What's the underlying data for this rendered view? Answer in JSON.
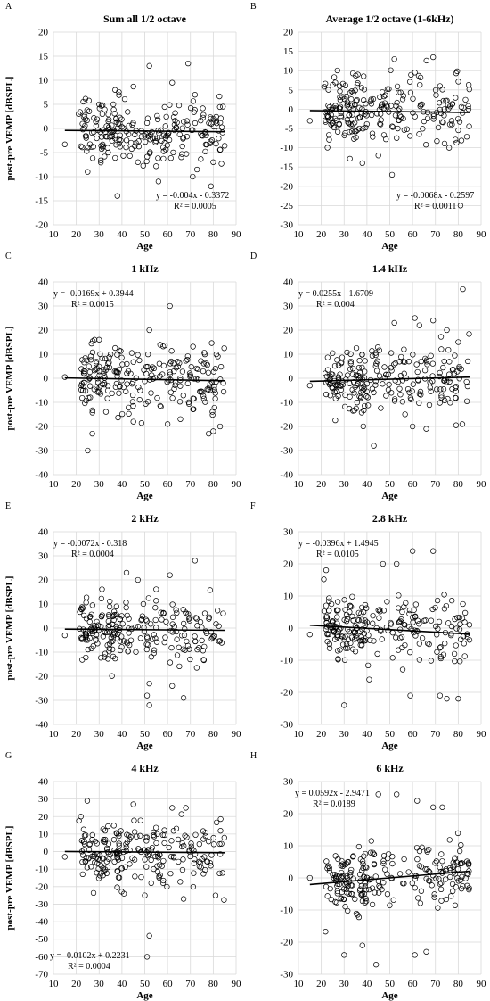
{
  "chart_data": [
    {
      "type": "scatter",
      "letter": "A",
      "title": "Sum all 1/2 octave",
      "xlabel": "Age",
      "ylabel": "post-pre VEMP [dBSPL]",
      "xlim": [
        10,
        90
      ],
      "ylim": [
        -20,
        20
      ],
      "xticks": [
        "10",
        "20",
        "30",
        "40",
        "50",
        "60",
        "70",
        "80",
        "90"
      ],
      "yticks": [
        "20",
        "15",
        "10",
        "5",
        "0",
        "-5",
        "-10",
        "-15",
        "-20"
      ],
      "equation": "y = -0.004x - 0.3372",
      "r2": "R² = 0.0005",
      "trendline": {
        "slope": -0.004,
        "intercept": -0.3372,
        "x_range": [
          15,
          85
        ]
      },
      "marker": "open-circle",
      "grid": true,
      "scatter_seed": 11,
      "points": [
        [
          15,
          -3.3
        ],
        [
          38,
          -14
        ],
        [
          52,
          13
        ],
        [
          69,
          13.5
        ],
        [
          45,
          8.7
        ],
        [
          37,
          8
        ],
        [
          62,
          9.5
        ],
        [
          72,
          7
        ],
        [
          21,
          3
        ],
        [
          30,
          5
        ],
        [
          56,
          -11
        ],
        [
          79,
          -12
        ],
        [
          71,
          -10
        ],
        [
          47,
          -7
        ],
        [
          80,
          -7
        ]
      ]
    },
    {
      "type": "scatter",
      "letter": "B",
      "title": "Average 1/2 octave (1-6kHz)",
      "xlabel": "Age",
      "ylabel": "",
      "xlim": [
        10,
        90
      ],
      "ylim": [
        -30,
        20
      ],
      "xticks": [
        "10",
        "20",
        "30",
        "40",
        "50",
        "60",
        "70",
        "80",
        "90"
      ],
      "yticks": [
        "20",
        "15",
        "10",
        "5",
        "0",
        "-5",
        "-10",
        "-15",
        "-20",
        "-25",
        "-30"
      ],
      "equation": "y = -0.0068x - 0.2597",
      "r2": "R² = 0.0011",
      "trendline": {
        "slope": -0.0068,
        "intercept": -0.2597,
        "x_range": [
          15,
          85
        ]
      },
      "marker": "open-circle",
      "grid": true,
      "scatter_seed": 23,
      "points": [
        [
          15,
          -3
        ],
        [
          52,
          13
        ],
        [
          69,
          13.5
        ],
        [
          81,
          -25
        ],
        [
          51,
          -17
        ],
        [
          38,
          -14
        ],
        [
          45,
          -12
        ],
        [
          61,
          9.5
        ],
        [
          72,
          6
        ],
        [
          28,
          6
        ],
        [
          36,
          9
        ],
        [
          76,
          -10
        ]
      ]
    },
    {
      "type": "scatter",
      "letter": "C",
      "title": "1 kHz",
      "xlabel": "Age",
      "ylabel": "post-pre VEMP [dBSPL]",
      "xlim": [
        10,
        90
      ],
      "ylim": [
        -40,
        40
      ],
      "xticks": [
        "10",
        "20",
        "30",
        "40",
        "50",
        "60",
        "70",
        "80",
        "90"
      ],
      "yticks": [
        "40",
        "30",
        "20",
        "10",
        "0",
        "-10",
        "-20",
        "-30",
        "-40"
      ],
      "equation": "y = -0.0169x + 0.3944",
      "r2": "R² = 0.0015",
      "trendline": {
        "slope": -0.0169,
        "intercept": 0.3944,
        "x_range": [
          15,
          85
        ]
      },
      "marker": "open-circle",
      "grid": true,
      "scatter_seed": 37,
      "points": [
        [
          15,
          0.5
        ],
        [
          25,
          -30
        ],
        [
          27,
          -23
        ],
        [
          28,
          16
        ],
        [
          30,
          16
        ],
        [
          52,
          20
        ],
        [
          61,
          30
        ],
        [
          78,
          -23
        ],
        [
          80,
          -22
        ],
        [
          83,
          -20
        ],
        [
          60,
          -19
        ],
        [
          45,
          -18
        ]
      ]
    },
    {
      "type": "scatter",
      "letter": "D",
      "title": "1.4 kHz",
      "xlabel": "Age",
      "ylabel": "",
      "xlim": [
        10,
        90
      ],
      "ylim": [
        -40,
        40
      ],
      "xticks": [
        "10",
        "20",
        "30",
        "40",
        "50",
        "60",
        "70",
        "80",
        "90"
      ],
      "yticks": [
        "40",
        "30",
        "20",
        "10",
        "0",
        "-10",
        "-20",
        "-30",
        "-40"
      ],
      "equation": "y = 0.0255x - 1.6709",
      "r2": "R² = 0.004",
      "trendline": {
        "slope": 0.0255,
        "intercept": -1.6709,
        "x_range": [
          15,
          85
        ]
      },
      "marker": "open-circle",
      "grid": true,
      "scatter_seed": 41,
      "points": [
        [
          15,
          -3
        ],
        [
          82,
          37
        ],
        [
          43,
          -28
        ],
        [
          52,
          23
        ],
        [
          61,
          25
        ],
        [
          63,
          22
        ],
        [
          69,
          24
        ],
        [
          75,
          20
        ],
        [
          80,
          15
        ],
        [
          60,
          -20
        ],
        [
          66,
          -21
        ]
      ]
    },
    {
      "type": "scatter",
      "letter": "E",
      "title": "2 kHz",
      "xlabel": "Age",
      "ylabel": "post-pre VEMP [dBSPL]",
      "xlim": [
        10,
        90
      ],
      "ylim": [
        -40,
        40
      ],
      "xticks": [
        "10",
        "20",
        "30",
        "40",
        "50",
        "60",
        "70",
        "80",
        "90"
      ],
      "yticks": [
        "40",
        "30",
        "20",
        "10",
        "0",
        "-10",
        "-20",
        "-30",
        "-40"
      ],
      "equation": "y = -0.0072x - 0.318",
      "r2": "R² = 0.0004",
      "trendline": {
        "slope": -0.0072,
        "intercept": -0.318,
        "x_range": [
          15,
          85
        ]
      },
      "marker": "open-circle",
      "grid": true,
      "scatter_seed": 53,
      "points": [
        [
          15,
          -3
        ],
        [
          42,
          23
        ],
        [
          47,
          20
        ],
        [
          61,
          22
        ],
        [
          72,
          28
        ],
        [
          52,
          -32
        ],
        [
          51,
          -28
        ],
        [
          67,
          -29
        ],
        [
          62,
          -24
        ],
        [
          52,
          -23
        ]
      ]
    },
    {
      "type": "scatter",
      "letter": "F",
      "title": "2.8 kHz",
      "xlabel": "Age",
      "ylabel": "",
      "xlim": [
        10,
        90
      ],
      "ylim": [
        -30,
        30
      ],
      "xticks": [
        "10",
        "20",
        "30",
        "40",
        "50",
        "60",
        "70",
        "80",
        "90"
      ],
      "yticks": [
        "30",
        "20",
        "10",
        "0",
        "-10",
        "-20",
        "-30"
      ],
      "equation": "y = -0.0396x + 1.4945",
      "r2": "R² = 0.0105",
      "trendline": {
        "slope": -0.0396,
        "intercept": 1.4945,
        "x_range": [
          15,
          85
        ]
      },
      "marker": "open-circle",
      "grid": true,
      "scatter_seed": 67,
      "points": [
        [
          15,
          -2
        ],
        [
          30,
          -24
        ],
        [
          60,
          24
        ],
        [
          69,
          24
        ],
        [
          47,
          20
        ],
        [
          53,
          20
        ],
        [
          59,
          -21
        ],
        [
          72,
          -21
        ],
        [
          75,
          -22
        ],
        [
          80,
          -22
        ],
        [
          41,
          -16
        ]
      ]
    },
    {
      "type": "scatter",
      "letter": "G",
      "title": "4 kHz",
      "xlabel": "Age",
      "ylabel": "post-pre VEMP [dBSPL]",
      "xlim": [
        10,
        90
      ],
      "ylim": [
        -70,
        40
      ],
      "xticks": [
        "10",
        "20",
        "30",
        "40",
        "50",
        "60",
        "70",
        "80",
        "90"
      ],
      "yticks": [
        "40",
        "30",
        "20",
        "10",
        "0",
        "-10",
        "-20",
        "-30",
        "-40",
        "-50",
        "-60",
        "-70"
      ],
      "equation": "y = -0.0102x + 0.2231",
      "r2": "R² = 0.0004",
      "trendline": {
        "slope": -0.0102,
        "intercept": 0.2231,
        "x_range": [
          15,
          85
        ]
      },
      "marker": "open-circle",
      "grid": true,
      "scatter_seed": 79,
      "points": [
        [
          15,
          -3
        ],
        [
          51,
          -60
        ],
        [
          52,
          -48
        ],
        [
          22,
          20
        ],
        [
          45,
          27
        ],
        [
          62,
          25
        ],
        [
          68,
          25
        ],
        [
          50,
          -25
        ],
        [
          67,
          -27
        ],
        [
          81,
          -25
        ]
      ]
    },
    {
      "type": "scatter",
      "letter": "H",
      "title": "6 kHz",
      "xlabel": "Age",
      "ylabel": "",
      "xlim": [
        10,
        90
      ],
      "ylim": [
        -30,
        30
      ],
      "xticks": [
        "10",
        "20",
        "30",
        "40",
        "50",
        "60",
        "70",
        "80",
        "90"
      ],
      "yticks": [
        "30",
        "20",
        "10",
        "0",
        "-10",
        "-20",
        "-30"
      ],
      "equation": "y = 0.0592x - 2.9471",
      "r2": "R² = 0.0189",
      "trendline": {
        "slope": 0.0592,
        "intercept": -2.9471,
        "x_range": [
          15,
          85
        ]
      },
      "marker": "open-circle",
      "grid": true,
      "scatter_seed": 97,
      "points": [
        [
          15,
          0
        ],
        [
          44,
          -27
        ],
        [
          30,
          -24
        ],
        [
          38,
          -21
        ],
        [
          45,
          26
        ],
        [
          53,
          26
        ],
        [
          62,
          24
        ],
        [
          69,
          22
        ],
        [
          73,
          22
        ],
        [
          61,
          -24
        ],
        [
          66,
          -23
        ]
      ]
    }
  ]
}
